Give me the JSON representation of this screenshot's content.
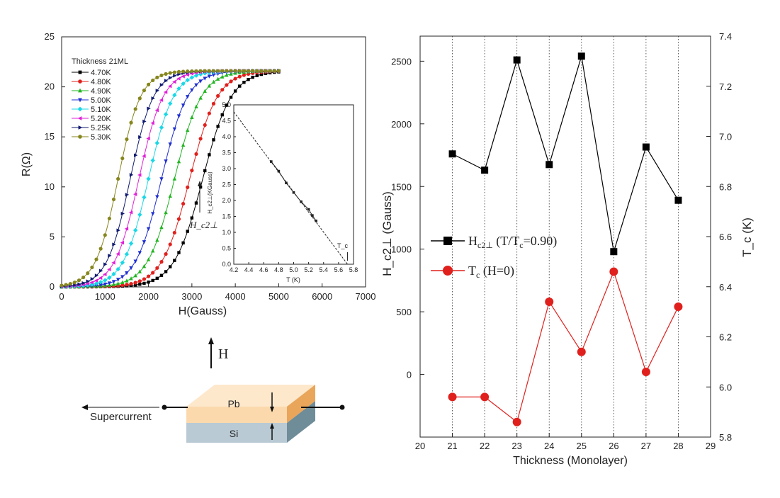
{
  "chart_data": [
    {
      "type": "line",
      "xlabel": "H(Gauss)",
      "ylabel": "R(Ω)",
      "xlim": [
        0,
        7000
      ],
      "ylim": [
        0,
        25
      ],
      "xticks": [
        "0",
        "1000",
        "2000",
        "3000",
        "4000",
        "5000",
        "6000",
        "7000"
      ],
      "yticks": [
        "0",
        "5",
        "10",
        "15",
        "20",
        "25"
      ],
      "legend_title": "Thickness 21ML",
      "rmax": 21.6,
      "series": [
        {
          "name": "4.70K",
          "color": "#000000",
          "marker": "square",
          "midpoint": 3250,
          "width": 330
        },
        {
          "name": "4.80K",
          "color": "#e0201c",
          "marker": "circle",
          "midpoint": 2950,
          "width": 320
        },
        {
          "name": "4.90K",
          "color": "#22b522",
          "marker": "triangle-up",
          "midpoint": 2600,
          "width": 310
        },
        {
          "name": "5.00K",
          "color": "#1f2fd0",
          "marker": "triangle-down",
          "midpoint": 2300,
          "width": 300
        },
        {
          "name": "5.10K",
          "color": "#18d8e6",
          "marker": "diamond",
          "midpoint": 2000,
          "width": 290
        },
        {
          "name": "5.20K",
          "color": "#e020d8",
          "marker": "triangle-left",
          "midpoint": 1780,
          "width": 280
        },
        {
          "name": "5.25K",
          "color": "#101a70",
          "marker": "triangle-right",
          "midpoint": 1580,
          "width": 270
        },
        {
          "name": "5.30K",
          "color": "#86861e",
          "marker": "circle",
          "midpoint": 1300,
          "width": 260
        }
      ],
      "annotation": "H_c2⊥",
      "inset": {
        "type": "line",
        "xlabel": "T (K)",
        "ylabel": "H_c2⊥(KGauss)",
        "xlim": [
          4.2,
          5.8
        ],
        "ylim": [
          0,
          5.0
        ],
        "xticks": [
          "4.2",
          "4.4",
          "4.6",
          "4.8",
          "5.0",
          "5.2",
          "5.4",
          "5.6",
          "5.8"
        ],
        "yticks": [
          "0.0",
          "0.5",
          "1.0",
          "1.5",
          "2.0",
          "2.5",
          "3.0",
          "3.5",
          "4.0",
          "4.5",
          "5.0"
        ],
        "x": [
          4.7,
          4.8,
          4.9,
          5.0,
          5.1,
          5.2,
          5.25,
          5.3
        ],
        "y": [
          3.22,
          2.92,
          2.55,
          2.25,
          1.96,
          1.72,
          1.53,
          1.36
        ],
        "fit_line": {
          "x": [
            4.2,
            5.72
          ],
          "y": [
            4.78,
            0.0
          ]
        },
        "annotation": "T_c"
      }
    },
    {
      "type": "line",
      "xlabel": "Thickness (Monolayer)",
      "ylabel": "H_c2⊥ (Gauss)",
      "y2label": "T_c (K)",
      "xlim": [
        20,
        29
      ],
      "ylim": [
        -500,
        2700
      ],
      "y2lim": [
        5.8,
        7.4
      ],
      "xticks": [
        "20",
        "21",
        "22",
        "23",
        "24",
        "25",
        "26",
        "27",
        "28",
        "29"
      ],
      "yticks": [
        "0",
        "500",
        "1000",
        "1500",
        "2000",
        "2500"
      ],
      "y2ticks": [
        "5.8",
        "6.0",
        "6.2",
        "6.4",
        "6.6",
        "6.8",
        "7.0",
        "7.2",
        "7.4"
      ],
      "grid_x": "dotted vertical lines at 21-28",
      "series": [
        {
          "name": "H_c2⊥ (T/T_c=0.90)",
          "axis": "left",
          "color": "#000000",
          "marker": "square",
          "x": [
            21,
            22,
            23,
            24,
            25,
            26,
            27,
            28
          ],
          "y": [
            1760,
            1630,
            2510,
            1675,
            2540,
            980,
            1815,
            1390
          ]
        },
        {
          "name": "T_c (H=0)",
          "axis": "right",
          "color": "#e0201c",
          "marker": "circle",
          "x": [
            21,
            22,
            23,
            24,
            25,
            26,
            27,
            28
          ],
          "y": [
            5.96,
            5.96,
            5.86,
            6.34,
            6.14,
            6.46,
            6.06,
            6.32
          ]
        }
      ],
      "legend": {
        "h_main": "H",
        "h_sub": "c2⊥",
        "h_rest": " (T/T",
        "h_sub2": "c",
        "h_end": "=0.90)",
        "t_main": "T",
        "t_sub": "c",
        "t_end": " (H=0)"
      }
    }
  ],
  "diagram": {
    "field_label": "H",
    "top_layer": "Pb",
    "bottom_layer": "Si",
    "current_label": "Supercurrent"
  }
}
